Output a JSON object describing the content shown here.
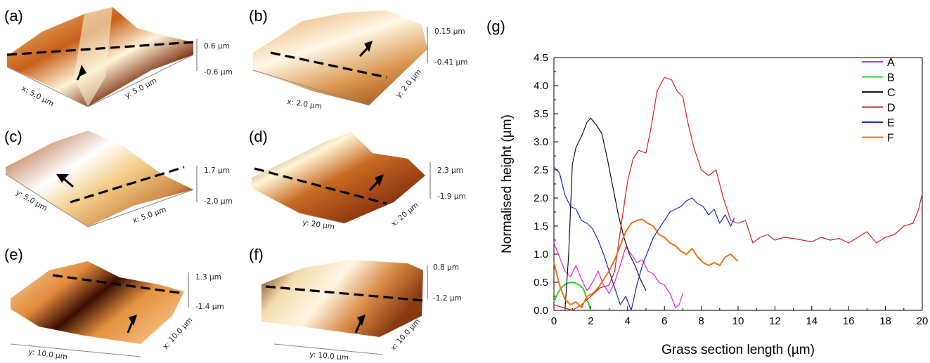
{
  "panels": [
    {
      "id": "a",
      "label": "(a)",
      "zmax": "0.6 µm",
      "zmin": "-0.6 µm",
      "xlab": "x: 5.0 µm",
      "ylab": "y: 5.0 µm"
    },
    {
      "id": "b",
      "label": "(b)",
      "zmax": "0.15 µm",
      "zmin": "-0.41 µm",
      "xlab": "x: 2.0 µm",
      "ylab": "y: 2.0 µm"
    },
    {
      "id": "c",
      "label": "(c)",
      "zmax": "1.7 µm",
      "zmin": "-2.0 µm",
      "xlab": "x: 5.0 µm",
      "ylab": "y: 5.0 µm"
    },
    {
      "id": "d",
      "label": "(d)",
      "zmax": "2.3 µm",
      "zmin": "-1.9 µm",
      "xlab": "x: 20 µm",
      "ylab": "y: 20 µm"
    },
    {
      "id": "e",
      "label": "(e)",
      "zmax": "1.3 µm",
      "zmin": "-1.4 µm",
      "xlab": "x: 10.0 µm",
      "ylab": "y: 10.0 µm"
    },
    {
      "id": "f",
      "label": "(f)",
      "zmax": "0.8 µm",
      "zmin": "-1.2 µm",
      "xlab": "x: 10.0 µm",
      "ylab": "y: 10.0 µm"
    }
  ],
  "chart_data": {
    "type": "line",
    "panel_label": "(g)",
    "xlabel": "Grass section length (µm)",
    "ylabel": "Normalised height (µm)",
    "xlim": [
      0,
      20
    ],
    "ylim": [
      0,
      4.5
    ],
    "xticks": [
      "0",
      "2",
      "4",
      "6",
      "8",
      "10",
      "12",
      "14",
      "16",
      "18",
      "20"
    ],
    "yticks": [
      "0.0",
      "0.5",
      "1.0",
      "1.5",
      "2.0",
      "2.5",
      "3.0",
      "3.5",
      "4.0",
      "4.5"
    ],
    "legend_position": "top-right",
    "series": [
      {
        "name": "A",
        "color": "#e020e0",
        "x": [
          0,
          0.3,
          0.6,
          0.9,
          1.2,
          1.5,
          1.8,
          2.1,
          2.4,
          2.7,
          3.0,
          3.3,
          3.6,
          3.9,
          4.2,
          4.5,
          4.8,
          5.1,
          5.4,
          5.7,
          6.0,
          6.3,
          6.6,
          6.8,
          7.0
        ],
        "y": [
          1.2,
          0.95,
          0.7,
          0.6,
          0.8,
          0.55,
          0.35,
          0.5,
          0.7,
          0.45,
          0.3,
          0.5,
          0.8,
          1.13,
          1.0,
          0.85,
          0.9,
          0.7,
          0.65,
          0.5,
          0.45,
          0.3,
          0.05,
          0.1,
          0.3
        ]
      },
      {
        "name": "B",
        "color": "#20d820",
        "x": [
          0,
          0.2,
          0.4,
          0.6,
          0.8,
          1.0,
          1.2,
          1.4,
          1.6,
          1.8,
          2.0
        ],
        "y": [
          0.15,
          0.3,
          0.4,
          0.46,
          0.49,
          0.5,
          0.48,
          0.45,
          0.38,
          0.2,
          0.0
        ]
      },
      {
        "name": "C",
        "color": "#111111",
        "x": [
          0.6,
          0.8,
          1.0,
          1.2,
          1.5,
          1.8,
          2.0,
          2.3,
          2.6,
          2.9,
          3.2,
          3.5,
          3.8,
          4.1,
          4.4,
          4.7,
          5.0
        ],
        "y": [
          0.0,
          1.0,
          2.6,
          2.9,
          3.1,
          3.35,
          3.42,
          3.3,
          3.15,
          2.7,
          2.2,
          1.7,
          1.3,
          1.0,
          0.8,
          0.55,
          0.35
        ]
      },
      {
        "name": "D",
        "color": "#d42020",
        "x": [
          0,
          0.5,
          1.0,
          1.5,
          2.0,
          2.5,
          3.0,
          3.3,
          3.6,
          4.0,
          4.3,
          4.6,
          5.0,
          5.3,
          5.6,
          6.0,
          6.4,
          6.7,
          7.0,
          7.3,
          7.6,
          8.0,
          8.4,
          8.8,
          9.2,
          9.6,
          10.0,
          10.4,
          10.8,
          11.2,
          11.6,
          12.0,
          12.5,
          13.0,
          13.5,
          14.0,
          14.5,
          15.0,
          15.5,
          16.0,
          16.5,
          17.0,
          17.5,
          18.0,
          18.5,
          19.0,
          19.5,
          19.8,
          20.0
        ],
        "y": [
          0.1,
          0.05,
          0.0,
          0.1,
          0.25,
          0.4,
          0.45,
          0.7,
          1.4,
          2.3,
          2.7,
          2.85,
          2.8,
          3.3,
          3.9,
          4.15,
          4.1,
          3.9,
          3.8,
          3.3,
          2.9,
          2.5,
          2.4,
          2.5,
          2.0,
          1.6,
          1.55,
          1.6,
          1.2,
          1.3,
          1.35,
          1.25,
          1.3,
          1.28,
          1.25,
          1.22,
          1.3,
          1.25,
          1.28,
          1.2,
          1.3,
          1.4,
          1.2,
          1.3,
          1.35,
          1.5,
          1.55,
          1.8,
          2.08
        ]
      },
      {
        "name": "E",
        "color": "#1a28c8",
        "x": [
          0,
          0.3,
          0.6,
          0.9,
          1.2,
          1.5,
          1.8,
          2.1,
          2.4,
          2.7,
          3.0,
          3.3,
          3.6,
          3.9,
          4.2,
          4.5,
          4.8,
          5.1,
          5.4,
          5.7,
          6.0,
          6.3,
          6.6,
          6.9,
          7.2,
          7.5,
          7.8,
          8.1,
          8.4,
          8.7,
          9.0,
          9.3,
          9.6,
          9.8
        ],
        "y": [
          2.55,
          2.45,
          2.05,
          1.85,
          1.8,
          1.6,
          1.55,
          1.45,
          1.25,
          1.0,
          0.7,
          0.4,
          0.1,
          0.25,
          0.0,
          0.45,
          0.8,
          1.05,
          1.3,
          1.45,
          1.6,
          1.75,
          1.8,
          1.85,
          1.95,
          2.0,
          1.9,
          1.85,
          1.7,
          1.8,
          1.55,
          1.7,
          1.5,
          1.65
        ]
      },
      {
        "name": "F",
        "color": "#f07010",
        "x": [
          0,
          0.3,
          0.6,
          0.9,
          1.2,
          1.5,
          1.8,
          2.1,
          2.4,
          2.7,
          3.0,
          3.3,
          3.6,
          3.9,
          4.2,
          4.5,
          4.8,
          5.1,
          5.4,
          5.7,
          6.0,
          6.3,
          6.6,
          6.9,
          7.2,
          7.5,
          7.8,
          8.1,
          8.4,
          8.7,
          9.0,
          9.3,
          9.6,
          9.9,
          10.0
        ],
        "y": [
          0.85,
          0.45,
          0.2,
          0.1,
          0.15,
          0.05,
          0.25,
          0.3,
          0.4,
          0.55,
          0.7,
          0.9,
          1.15,
          1.4,
          1.55,
          1.6,
          1.62,
          1.55,
          1.5,
          1.35,
          1.3,
          1.2,
          1.15,
          1.05,
          1.0,
          1.1,
          0.95,
          0.85,
          0.8,
          0.85,
          0.8,
          0.95,
          1.0,
          0.9,
          0.88
        ]
      }
    ]
  }
}
